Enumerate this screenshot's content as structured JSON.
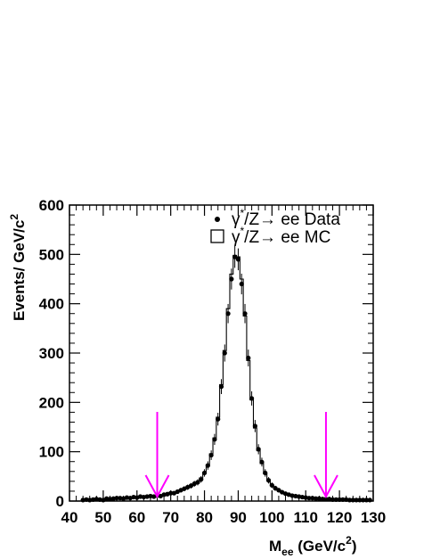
{
  "chart_data": {
    "type": "scatter",
    "xlim": [
      40,
      130
    ],
    "ylim": [
      0,
      600
    ],
    "x_ticks": [
      "40",
      "50",
      "60",
      "70",
      "80",
      "90",
      "100",
      "110",
      "120",
      "130"
    ],
    "y_ticks": [
      "0",
      "100",
      "200",
      "300",
      "400",
      "500",
      "600"
    ],
    "ylabel": "Events/ GeV/c 2",
    "xlabel": "M ee (GeV/c 2 )",
    "legend": {
      "position": "top-right",
      "entries": [
        "γ*/Z→ ee Data",
        "γ*/Z→ ee MC"
      ]
    },
    "marker_color": "#ff00ff",
    "marker_x": [
      66,
      116
    ],
    "data_series": {
      "name": "γ*/Z→ ee Data",
      "x": [
        44,
        45,
        46,
        47,
        48,
        49,
        50,
        51,
        52,
        53,
        54,
        55,
        56,
        57,
        58,
        59,
        60,
        61,
        62,
        63,
        64,
        65,
        66,
        67,
        68,
        69,
        70,
        71,
        72,
        73,
        74,
        75,
        76,
        77,
        78,
        79,
        80,
        81,
        82,
        83,
        84,
        85,
        86,
        87,
        88,
        89,
        90,
        91,
        92,
        93,
        94,
        95,
        96,
        97,
        98,
        99,
        100,
        101,
        102,
        103,
        104,
        105,
        106,
        107,
        108,
        109,
        110,
        111,
        112,
        113,
        114,
        115,
        116,
        117,
        118,
        119,
        120,
        121,
        122,
        123,
        124,
        125,
        126,
        127,
        128,
        129
      ],
      "y": [
        2,
        3,
        2,
        3,
        4,
        3,
        2,
        5,
        4,
        5,
        6,
        6,
        5,
        7,
        6,
        8,
        7,
        9,
        8,
        9,
        10,
        9,
        11,
        10,
        13,
        14,
        16,
        16,
        19,
        22,
        25,
        28,
        31,
        35,
        38,
        44,
        57,
        72,
        93,
        125,
        166,
        232,
        300,
        380,
        450,
        495,
        490,
        440,
        380,
        290,
        208,
        152,
        105,
        79,
        57,
        42,
        32,
        26,
        22,
        18,
        15,
        13,
        11,
        10,
        9,
        8,
        7,
        6,
        6,
        5,
        5,
        4,
        4,
        4,
        3,
        3,
        3,
        3,
        3,
        2,
        2,
        2,
        2,
        2,
        2,
        2
      ]
    },
    "mc_series": {
      "name": "γ*/Z→ ee MC",
      "x": [
        44,
        45,
        46,
        47,
        48,
        49,
        50,
        51,
        52,
        53,
        54,
        55,
        56,
        57,
        58,
        59,
        60,
        61,
        62,
        63,
        64,
        65,
        66,
        67,
        68,
        69,
        70,
        71,
        72,
        73,
        74,
        75,
        76,
        77,
        78,
        79,
        80,
        81,
        82,
        83,
        84,
        85,
        86,
        87,
        88,
        89,
        90,
        91,
        92,
        93,
        94,
        95,
        96,
        97,
        98,
        99,
        100,
        101,
        102,
        103,
        104,
        105,
        106,
        107,
        108,
        109,
        110,
        111,
        112,
        113,
        114,
        115,
        116,
        117,
        118,
        119,
        120,
        121,
        122,
        123,
        124,
        125,
        126,
        127,
        128,
        129
      ],
      "y": [
        2,
        2,
        3,
        3,
        3,
        3,
        4,
        4,
        4,
        5,
        5,
        5,
        6,
        6,
        7,
        7,
        8,
        8,
        9,
        9,
        10,
        10,
        11,
        12,
        13,
        14,
        15,
        17,
        19,
        21,
        24,
        27,
        31,
        35,
        40,
        47,
        58,
        74,
        96,
        128,
        170,
        236,
        305,
        390,
        460,
        498,
        495,
        450,
        375,
        285,
        205,
        148,
        102,
        76,
        55,
        41,
        31,
        25,
        21,
        17,
        14,
        12,
        11,
        10,
        9,
        8,
        7,
        6,
        6,
        5,
        5,
        4,
        4,
        4,
        3,
        3,
        3,
        3,
        3,
        2,
        2,
        2,
        2,
        2,
        2,
        2
      ]
    }
  }
}
